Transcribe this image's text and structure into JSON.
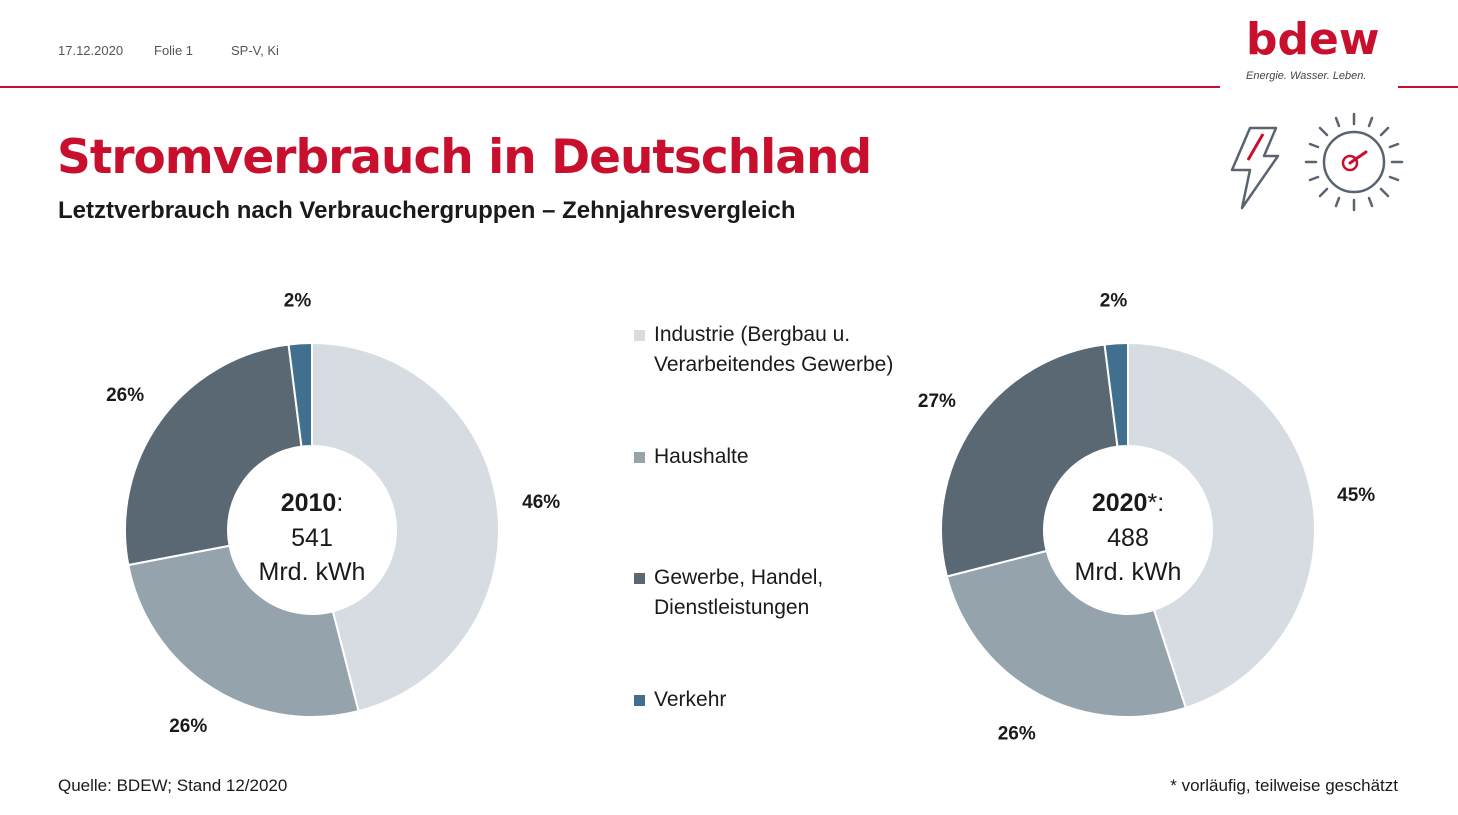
{
  "header": {
    "date": "17.12.2020",
    "folie": "Folie 1",
    "author": "SP-V, Ki",
    "logo_word": "bdew",
    "logo_tagline": "Energie. Wasser. Leben."
  },
  "title": "Stromverbrauch in Deutschland",
  "subtitle": "Letztverbrauch nach Verbrauchergruppen – Zehnjahresvergleich",
  "icons": [
    "lightning-icon",
    "gauge-icon"
  ],
  "colors": {
    "accent": "#c8102e",
    "industrie": "#d6dce1",
    "haushalte": "#95a3ad",
    "gewerbe": "#5a6874",
    "verkehr": "#41708f"
  },
  "legend": [
    {
      "label": "Industrie (Bergbau u. Verarbeitendes Gewerbe)",
      "color_key": "industrie"
    },
    {
      "label": "Haushalte",
      "color_key": "haushalte"
    },
    {
      "label": "Gewerbe, Handel, Dienstleistungen",
      "color_key": "gewerbe"
    },
    {
      "label": "Verkehr",
      "color_key": "verkehr"
    }
  ],
  "chart_data": [
    {
      "type": "pie",
      "center_year": "2010",
      "center_suffix": ":",
      "center_value": "541",
      "center_unit": "Mrd. kWh",
      "categories": [
        "Industrie (Bergbau u. Verarbeitendes Gewerbe)",
        "Haushalte",
        "Gewerbe, Handel, Dienstleistungen",
        "Verkehr"
      ],
      "values": [
        46,
        26,
        26,
        2
      ],
      "labels": [
        "46%",
        "26%",
        "26%",
        "2%"
      ]
    },
    {
      "type": "pie",
      "center_year": "2020",
      "center_suffix": "*:",
      "center_value": "488",
      "center_unit": "Mrd. kWh",
      "categories": [
        "Industrie (Bergbau u. Verarbeitendes Gewerbe)",
        "Haushalte",
        "Gewerbe, Handel, Dienstleistungen",
        "Verkehr"
      ],
      "values": [
        45,
        26,
        27,
        2
      ],
      "labels": [
        "45%",
        "26%",
        "27%",
        "2%"
      ]
    }
  ],
  "source": "Quelle: BDEW; Stand 12/2020",
  "footnote": "* vorläufig, teilweise geschätzt"
}
